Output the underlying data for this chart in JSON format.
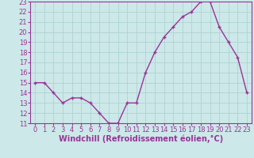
{
  "x": [
    0,
    1,
    2,
    3,
    4,
    5,
    6,
    7,
    8,
    9,
    10,
    11,
    12,
    13,
    14,
    15,
    16,
    17,
    18,
    19,
    20,
    21,
    22,
    23
  ],
  "y": [
    15,
    15,
    14,
    13,
    13.5,
    13.5,
    13,
    12,
    11,
    11,
    13,
    13,
    16,
    18,
    19.5,
    20.5,
    21.5,
    22,
    23,
    23,
    20.5,
    19,
    17.5,
    14
  ],
  "line_color": "#993399",
  "marker": "+",
  "bg_color": "#cce8e8",
  "grid_color": "#aacfcf",
  "xlabel": "Windchill (Refroidissement éolien,°C)",
  "ylim": [
    11,
    23
  ],
  "xlim": [
    -0.5,
    23.5
  ],
  "yticks": [
    11,
    12,
    13,
    14,
    15,
    16,
    17,
    18,
    19,
    20,
    21,
    22,
    23
  ],
  "xticks": [
    0,
    1,
    2,
    3,
    4,
    5,
    6,
    7,
    8,
    9,
    10,
    11,
    12,
    13,
    14,
    15,
    16,
    17,
    18,
    19,
    20,
    21,
    22,
    23
  ],
  "xlabel_fontsize": 7,
  "tick_fontsize": 6,
  "line_width": 1.0,
  "marker_size": 3
}
